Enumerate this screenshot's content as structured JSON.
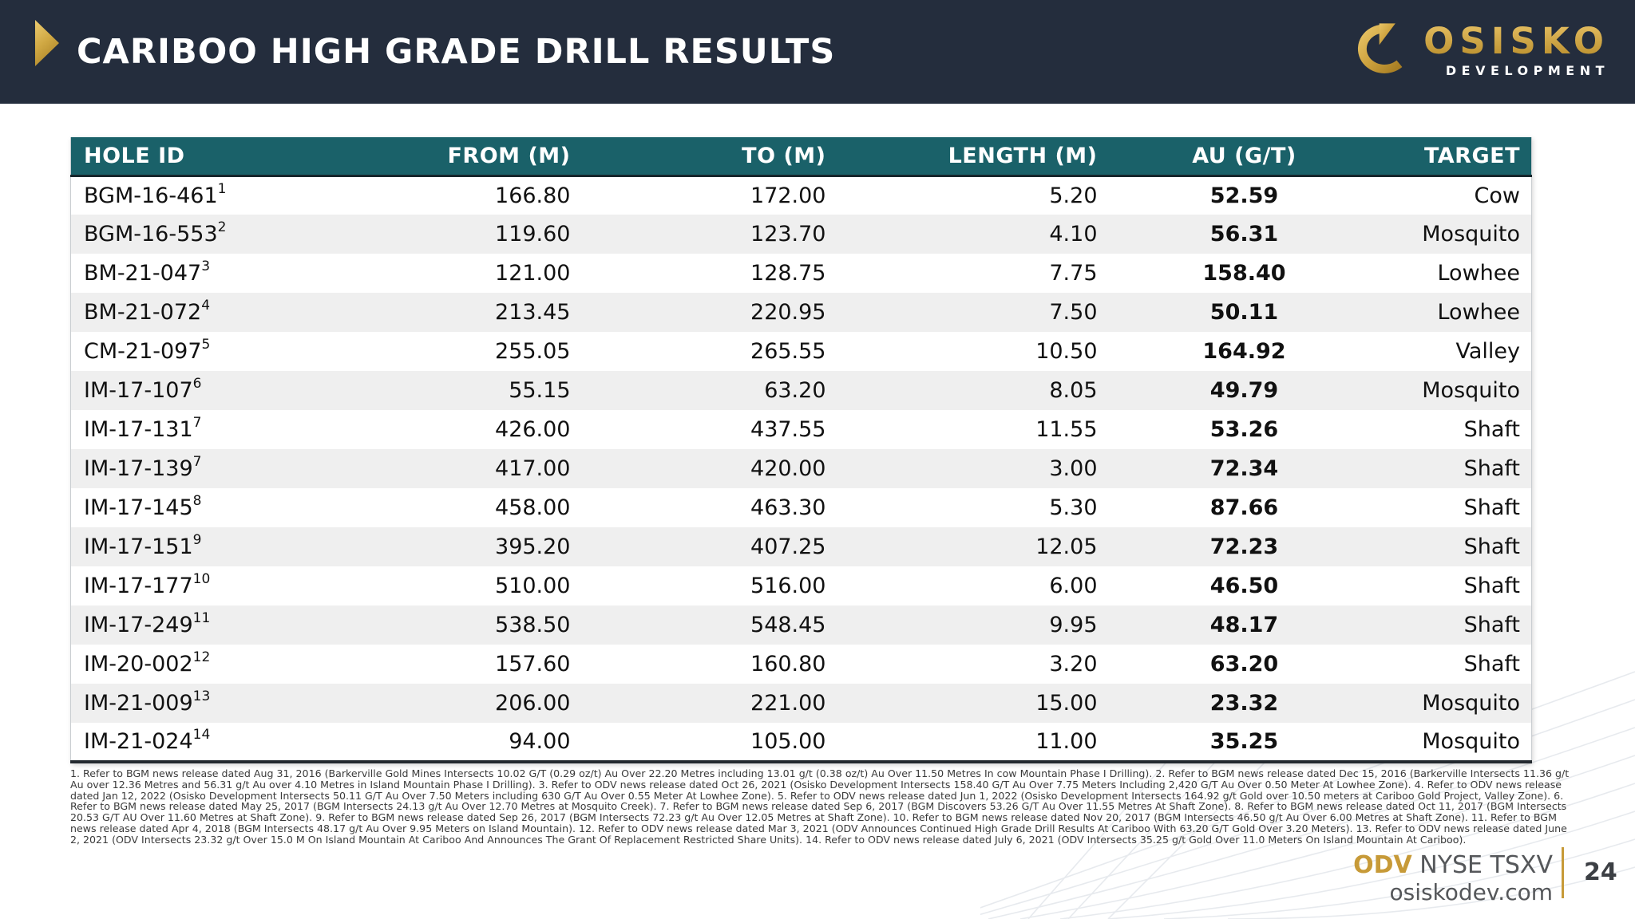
{
  "header": {
    "title": "CARIBOO HIGH GRADE DRILL RESULTS",
    "logo": {
      "name": "OSISKO",
      "subtitle": "DEVELOPMENT"
    }
  },
  "colors": {
    "navy": "#242D3D",
    "teal": "#1A6169",
    "gold": "#C79A38",
    "alt_row": "#efefef"
  },
  "table": {
    "columns": [
      "HOLE ID",
      "FROM (M)",
      "TO (M)",
      "LENGTH (M)",
      "AU (G/T)",
      "TARGET"
    ],
    "rows": [
      {
        "hole_id": "BGM-16-461",
        "sup": "1",
        "from": "166.80",
        "to": "172.00",
        "length": "5.20",
        "au": "52.59",
        "target": "Cow"
      },
      {
        "hole_id": "BGM-16-553",
        "sup": "2",
        "from": "119.60",
        "to": "123.70",
        "length": "4.10",
        "au": "56.31",
        "target": "Mosquito"
      },
      {
        "hole_id": "BM-21-047",
        "sup": "3",
        "from": "121.00",
        "to": "128.75",
        "length": "7.75",
        "au": "158.40",
        "target": "Lowhee"
      },
      {
        "hole_id": "BM-21-072",
        "sup": "4",
        "from": "213.45",
        "to": "220.95",
        "length": "7.50",
        "au": "50.11",
        "target": "Lowhee"
      },
      {
        "hole_id": "CM-21-097",
        "sup": "5",
        "from": "255.05",
        "to": "265.55",
        "length": "10.50",
        "au": "164.92",
        "target": "Valley"
      },
      {
        "hole_id": "IM-17-107",
        "sup": "6",
        "from": "55.15",
        "to": "63.20",
        "length": "8.05",
        "au": "49.79",
        "target": "Mosquito"
      },
      {
        "hole_id": "IM-17-131",
        "sup": "7",
        "from": "426.00",
        "to": "437.55",
        "length": "11.55",
        "au": "53.26",
        "target": "Shaft"
      },
      {
        "hole_id": "IM-17-139",
        "sup": "7",
        "from": "417.00",
        "to": "420.00",
        "length": "3.00",
        "au": "72.34",
        "target": "Shaft"
      },
      {
        "hole_id": "IM-17-145",
        "sup": "8",
        "from": "458.00",
        "to": "463.30",
        "length": "5.30",
        "au": "87.66",
        "target": "Shaft"
      },
      {
        "hole_id": "IM-17-151",
        "sup": "9",
        "from": "395.20",
        "to": "407.25",
        "length": "12.05",
        "au": "72.23",
        "target": "Shaft"
      },
      {
        "hole_id": "IM-17-177",
        "sup": "10",
        "from": "510.00",
        "to": "516.00",
        "length": "6.00",
        "au": "46.50",
        "target": "Shaft"
      },
      {
        "hole_id": "IM-17-249",
        "sup": "11",
        "from": "538.50",
        "to": "548.45",
        "length": "9.95",
        "au": "48.17",
        "target": "Shaft"
      },
      {
        "hole_id": "IM-20-002",
        "sup": "12",
        "from": "157.60",
        "to": "160.80",
        "length": "3.20",
        "au": "63.20",
        "target": "Shaft"
      },
      {
        "hole_id": "IM-21-009",
        "sup": "13",
        "from": "206.00",
        "to": "221.00",
        "length": "15.00",
        "au": "23.32",
        "target": "Mosquito"
      },
      {
        "hole_id": "IM-21-024",
        "sup": "14",
        "from": "94.00",
        "to": "105.00",
        "length": "11.00",
        "au": "35.25",
        "target": "Mosquito"
      }
    ]
  },
  "footnotes": "1. Refer to BGM news release dated Aug 31, 2016 (Barkerville Gold Mines Intersects 10.02 G/T (0.29 oz/t) Au Over 22.20 Metres including 13.01 g/t (0.38 oz/t) Au Over 11.50 Metres In cow Mountain Phase I Drilling). 2. Refer to BGM news release dated Dec 15, 2016 (Barkerville Intersects 11.36 g/t Au over 12.36 Metres and 56.31 g/t Au over 4.10 Metres in Island Mountain Phase I Drilling). 3. Refer to ODV news release dated Oct 26, 2021 (Osisko Development Intersects 158.40 G/T Au Over 7.75 Meters Including 2,420 G/T Au Over 0.50 Meter At Lowhee Zone). 4. Refer to ODV news release dated Jan 12, 2022 (Osisko Development Intersects 50.11 G/T Au Over 7.50 Meters including 630 G/T Au Over 0.55 Meter At Lowhee Zone).  5. Refer to ODV news release dated Jun 1, 2022 (Osisko Development Intersects 164.92 g/t Gold over 10.50 meters at Cariboo Gold Project, Valley Zone). 6. Refer to BGM news release dated May 25, 2017 (BGM Intersects 24.13 g/t Au Over 12.70 Metres at Mosquito Creek). 7. Refer to BGM news release dated Sep 6, 2017 (BGM Discovers 53.26 G/T Au Over 11.55 Metres At Shaft Zone). 8. Refer to BGM news release dated Oct 11, 2017 (BGM Intersects 20.53 G/T AU Over 11.60 Metres at Shaft Zone).  9. Refer to BGM news release dated Sep 26, 2017 (BGM Intersects 72.23 g/t Au Over 12.05 Metres at Shaft Zone). 10. Refer to BGM news release dated Nov 20, 2017 (BGM Intersects 46.50 g/t Au Over 6.00 Metres at Shaft Zone). 11. Refer to BGM news release dated Apr 4, 2018 (BGM Intersects 48.17 g/t Au Over 9.95 Meters on Island Mountain). 12. Refer to ODV news release dated Mar 3, 2021 (ODV Announces Continued High Grade Drill Results At Cariboo With 63.20 G/T Gold Over 3.20 Meters). 13. Refer to ODV news release dated June 2, 2021 (ODV Intersects 23.32 g/t Over 15.0 M On Island Mountain At Cariboo And Announces The Grant Of Replacement Restricted Share Units). 14. Refer to ODV news release dated July 6, 2021 (ODV Intersects 35.25 g/t Gold Over 11.0 Meters On Island Mountain At Cariboo).",
  "footer": {
    "ticker": "ODV",
    "exchanges": "NYSE TSXV",
    "website": "osiskodev.com",
    "page_number": "24"
  }
}
